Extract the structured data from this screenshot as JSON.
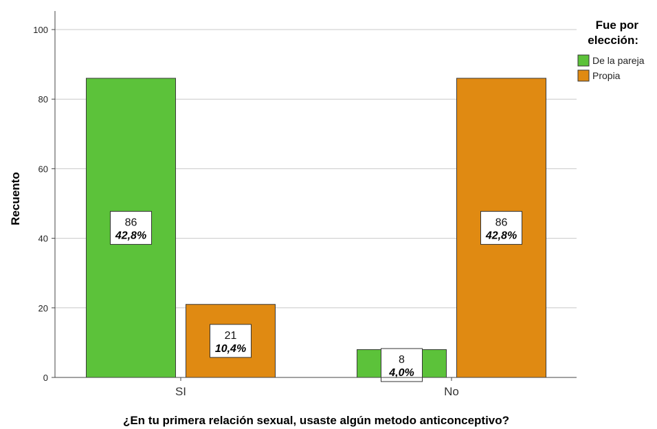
{
  "chart_data": {
    "type": "bar",
    "xlabel": "¿En tu primera relación sexual, usaste algún metodo anticonceptivo?",
    "ylabel": "Recuento",
    "categories": [
      "SI",
      "No"
    ],
    "ylim": [
      0,
      100
    ],
    "yticks": [
      0,
      20,
      40,
      60,
      80,
      100
    ],
    "grid": true,
    "legend": {
      "title_lines": [
        "Fue por",
        "elección:"
      ],
      "placement": "top-right"
    },
    "series": [
      {
        "name": "De la pareja",
        "color": "#5cc23a",
        "values": [
          86,
          8
        ],
        "percent_labels": [
          "42,8%",
          "4,0%"
        ]
      },
      {
        "name": "Propia",
        "color": "#e08a12",
        "values": [
          21,
          86
        ],
        "percent_labels": [
          "10,4%",
          "42,8%"
        ]
      }
    ]
  }
}
